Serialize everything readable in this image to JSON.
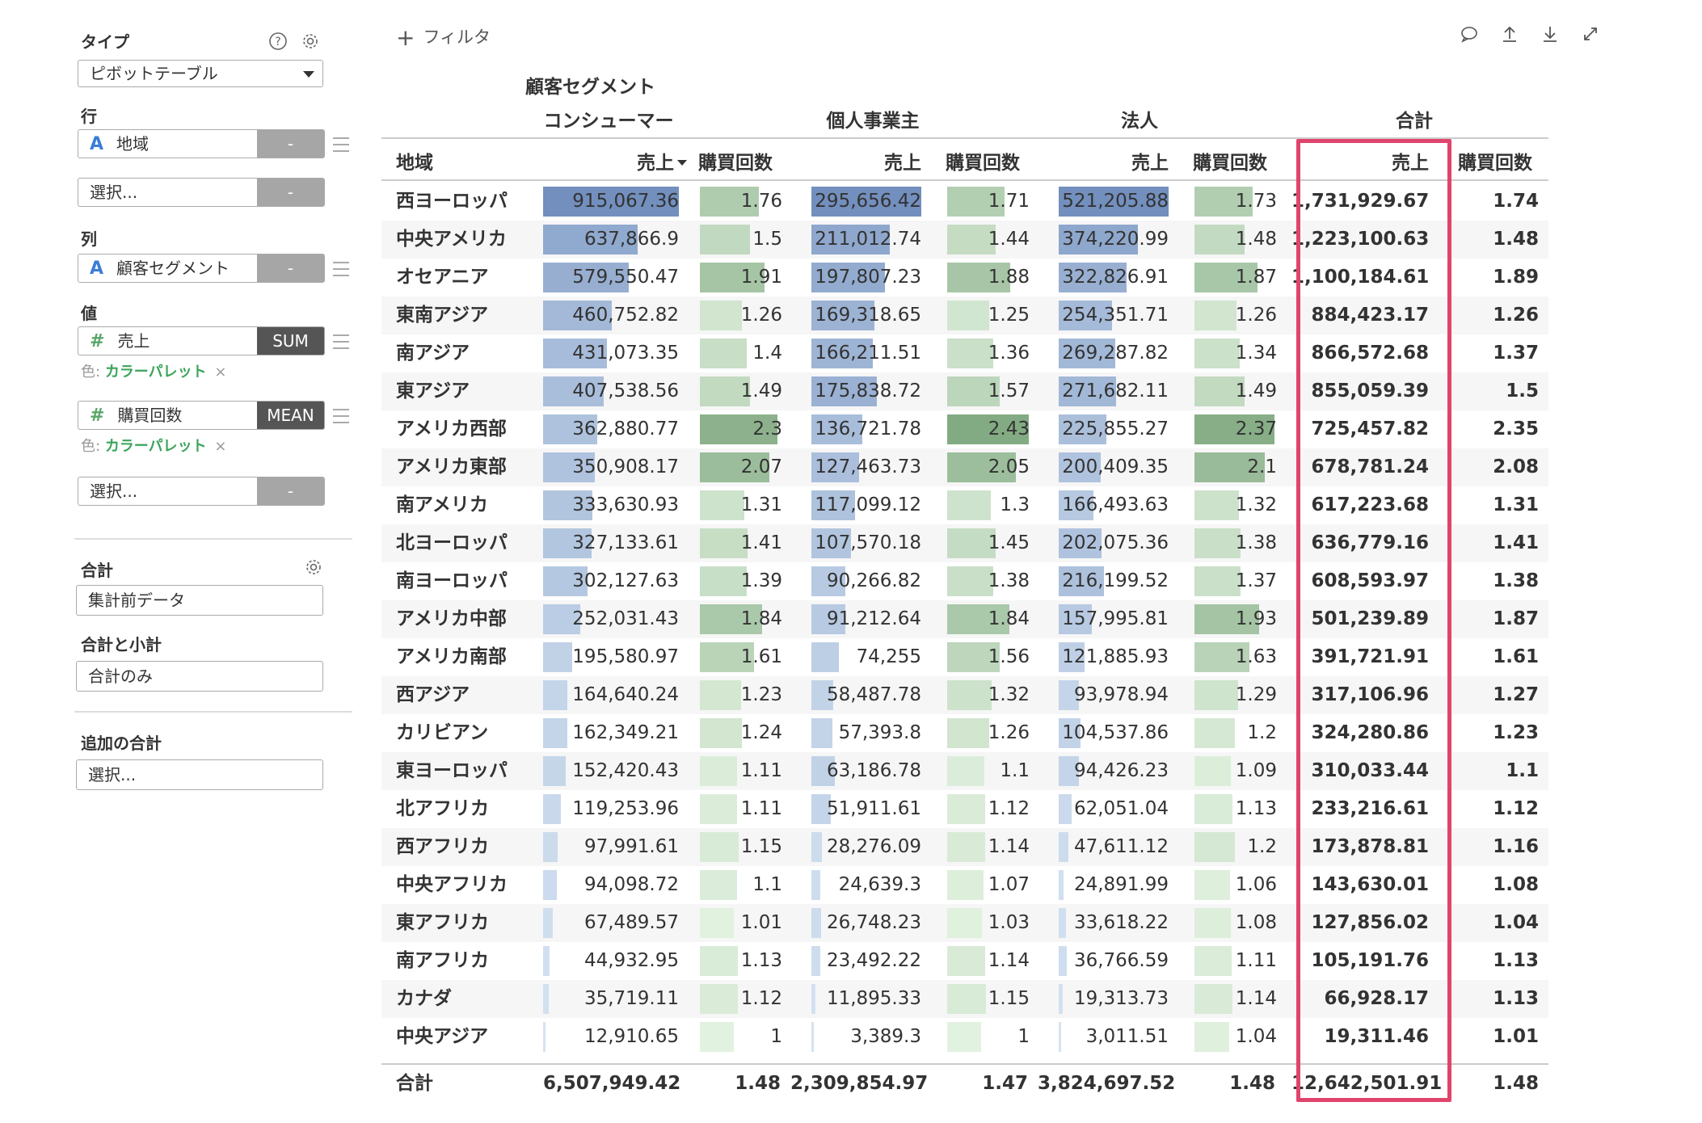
{
  "sidebar": {
    "type_label": "タイプ",
    "help_icon": "help-circle-icon",
    "gear_icon": "gear-icon",
    "type_value": "ピボットテーブル",
    "rows_label": "行",
    "rows_field": {
      "glyph": "A",
      "name": "地域",
      "agg": "-"
    },
    "rows_select": {
      "placeholder": "選択...",
      "agg": "-"
    },
    "cols_label": "列",
    "cols_field": {
      "glyph": "A",
      "name": "顧客セグメント",
      "agg": "-"
    },
    "values_label": "値",
    "value_fields": [
      {
        "glyph": "#",
        "name": "売上",
        "agg": "SUM",
        "color_prefix": "色:",
        "color_palette": "カラーパレット",
        "remove": "×"
      },
      {
        "glyph": "#",
        "name": "購買回数",
        "agg": "MEAN",
        "color_prefix": "色:",
        "color_palette": "カラーパレット",
        "remove": "×"
      }
    ],
    "values_select": {
      "placeholder": "選択...",
      "agg": "-"
    },
    "total_label": "合計",
    "total_value": "集計前データ",
    "subtotal_label": "合計と小計",
    "subtotal_value": "合計のみ",
    "extra_total_label": "追加の合計",
    "extra_total_placeholder": "選択..."
  },
  "toolbar": {
    "filter_label": "フィルタ",
    "icons": [
      "comment-icon",
      "upload-icon",
      "download-icon",
      "expand-icon"
    ]
  },
  "table": {
    "column_group_label": "顧客セグメント",
    "segments": [
      "コンシューマー",
      "個人事業主",
      "法人"
    ],
    "total_header": "合計",
    "row_header": "地域",
    "sales_header": "売上",
    "purchases_header": "購買回数",
    "colors": {
      "sales_bar": "#7a9cc6",
      "purchase_bar": "#8fbf8f",
      "highlight": "#e0446c"
    },
    "rows": [
      {
        "region": "西ヨーロッパ",
        "c_sales": "915,067.36",
        "c_cnt": "1.76",
        "i_sales": "295,656.42",
        "i_cnt": "1.71",
        "k_sales": "521,205.88",
        "k_cnt": "1.73",
        "t_sales": "1,731,929.67",
        "t_cnt": "1.74"
      },
      {
        "region": "中央アメリカ",
        "c_sales": "637,866.9",
        "c_cnt": "1.5",
        "i_sales": "211,012.74",
        "i_cnt": "1.44",
        "k_sales": "374,220.99",
        "k_cnt": "1.48",
        "t_sales": "1,223,100.63",
        "t_cnt": "1.48"
      },
      {
        "region": "オセアニア",
        "c_sales": "579,550.47",
        "c_cnt": "1.91",
        "i_sales": "197,807.23",
        "i_cnt": "1.88",
        "k_sales": "322,826.91",
        "k_cnt": "1.87",
        "t_sales": "1,100,184.61",
        "t_cnt": "1.89"
      },
      {
        "region": "東南アジア",
        "c_sales": "460,752.82",
        "c_cnt": "1.26",
        "i_sales": "169,318.65",
        "i_cnt": "1.25",
        "k_sales": "254,351.71",
        "k_cnt": "1.26",
        "t_sales": "884,423.17",
        "t_cnt": "1.26"
      },
      {
        "region": "南アジア",
        "c_sales": "431,073.35",
        "c_cnt": "1.4",
        "i_sales": "166,211.51",
        "i_cnt": "1.36",
        "k_sales": "269,287.82",
        "k_cnt": "1.34",
        "t_sales": "866,572.68",
        "t_cnt": "1.37"
      },
      {
        "region": "東アジア",
        "c_sales": "407,538.56",
        "c_cnt": "1.49",
        "i_sales": "175,838.72",
        "i_cnt": "1.57",
        "k_sales": "271,682.11",
        "k_cnt": "1.49",
        "t_sales": "855,059.39",
        "t_cnt": "1.5"
      },
      {
        "region": "アメリカ西部",
        "c_sales": "362,880.77",
        "c_cnt": "2.3",
        "i_sales": "136,721.78",
        "i_cnt": "2.43",
        "k_sales": "225,855.27",
        "k_cnt": "2.37",
        "t_sales": "725,457.82",
        "t_cnt": "2.35"
      },
      {
        "region": "アメリカ東部",
        "c_sales": "350,908.17",
        "c_cnt": "2.07",
        "i_sales": "127,463.73",
        "i_cnt": "2.05",
        "k_sales": "200,409.35",
        "k_cnt": "2.1",
        "t_sales": "678,781.24",
        "t_cnt": "2.08"
      },
      {
        "region": "南アメリカ",
        "c_sales": "333,630.93",
        "c_cnt": "1.31",
        "i_sales": "117,099.12",
        "i_cnt": "1.3",
        "k_sales": "166,493.63",
        "k_cnt": "1.32",
        "t_sales": "617,223.68",
        "t_cnt": "1.31"
      },
      {
        "region": "北ヨーロッパ",
        "c_sales": "327,133.61",
        "c_cnt": "1.41",
        "i_sales": "107,570.18",
        "i_cnt": "1.45",
        "k_sales": "202,075.36",
        "k_cnt": "1.38",
        "t_sales": "636,779.16",
        "t_cnt": "1.41"
      },
      {
        "region": "南ヨーロッパ",
        "c_sales": "302,127.63",
        "c_cnt": "1.39",
        "i_sales": "90,266.82",
        "i_cnt": "1.38",
        "k_sales": "216,199.52",
        "k_cnt": "1.37",
        "t_sales": "608,593.97",
        "t_cnt": "1.38"
      },
      {
        "region": "アメリカ中部",
        "c_sales": "252,031.43",
        "c_cnt": "1.84",
        "i_sales": "91,212.64",
        "i_cnt": "1.84",
        "k_sales": "157,995.81",
        "k_cnt": "1.93",
        "t_sales": "501,239.89",
        "t_cnt": "1.87"
      },
      {
        "region": "アメリカ南部",
        "c_sales": "195,580.97",
        "c_cnt": "1.61",
        "i_sales": "74,255",
        "i_cnt": "1.56",
        "k_sales": "121,885.93",
        "k_cnt": "1.63",
        "t_sales": "391,721.91",
        "t_cnt": "1.61"
      },
      {
        "region": "西アジア",
        "c_sales": "164,640.24",
        "c_cnt": "1.23",
        "i_sales": "58,487.78",
        "i_cnt": "1.32",
        "k_sales": "93,978.94",
        "k_cnt": "1.29",
        "t_sales": "317,106.96",
        "t_cnt": "1.27"
      },
      {
        "region": "カリビアン",
        "c_sales": "162,349.21",
        "c_cnt": "1.24",
        "i_sales": "57,393.8",
        "i_cnt": "1.26",
        "k_sales": "104,537.86",
        "k_cnt": "1.2",
        "t_sales": "324,280.86",
        "t_cnt": "1.23"
      },
      {
        "region": "東ヨーロッパ",
        "c_sales": "152,420.43",
        "c_cnt": "1.11",
        "i_sales": "63,186.78",
        "i_cnt": "1.1",
        "k_sales": "94,426.23",
        "k_cnt": "1.09",
        "t_sales": "310,033.44",
        "t_cnt": "1.1"
      },
      {
        "region": "北アフリカ",
        "c_sales": "119,253.96",
        "c_cnt": "1.11",
        "i_sales": "51,911.61",
        "i_cnt": "1.12",
        "k_sales": "62,051.04",
        "k_cnt": "1.13",
        "t_sales": "233,216.61",
        "t_cnt": "1.12"
      },
      {
        "region": "西アフリカ",
        "c_sales": "97,991.61",
        "c_cnt": "1.15",
        "i_sales": "28,276.09",
        "i_cnt": "1.14",
        "k_sales": "47,611.12",
        "k_cnt": "1.2",
        "t_sales": "173,878.81",
        "t_cnt": "1.16"
      },
      {
        "region": "中央アフリカ",
        "c_sales": "94,098.72",
        "c_cnt": "1.1",
        "i_sales": "24,639.3",
        "i_cnt": "1.07",
        "k_sales": "24,891.99",
        "k_cnt": "1.06",
        "t_sales": "143,630.01",
        "t_cnt": "1.08"
      },
      {
        "region": "東アフリカ",
        "c_sales": "67,489.57",
        "c_cnt": "1.01",
        "i_sales": "26,748.23",
        "i_cnt": "1.03",
        "k_sales": "33,618.22",
        "k_cnt": "1.08",
        "t_sales": "127,856.02",
        "t_cnt": "1.04"
      },
      {
        "region": "南アフリカ",
        "c_sales": "44,932.95",
        "c_cnt": "1.13",
        "i_sales": "23,492.22",
        "i_cnt": "1.14",
        "k_sales": "36,766.59",
        "k_cnt": "1.11",
        "t_sales": "105,191.76",
        "t_cnt": "1.13"
      },
      {
        "region": "カナダ",
        "c_sales": "35,719.11",
        "c_cnt": "1.12",
        "i_sales": "11,895.33",
        "i_cnt": "1.15",
        "k_sales": "19,313.73",
        "k_cnt": "1.14",
        "t_sales": "66,928.17",
        "t_cnt": "1.13"
      },
      {
        "region": "中央アジア",
        "c_sales": "12,910.65",
        "c_cnt": "1",
        "i_sales": "3,389.3",
        "i_cnt": "1",
        "k_sales": "3,011.51",
        "k_cnt": "1.04",
        "t_sales": "19,311.46",
        "t_cnt": "1.01"
      }
    ],
    "totals": {
      "label": "合計",
      "c_sales": "6,507,949.42",
      "c_cnt": "1.48",
      "i_sales": "2,309,854.97",
      "i_cnt": "1.47",
      "k_sales": "3,824,697.52",
      "k_cnt": "1.48",
      "t_sales": "12,642,501.91",
      "t_cnt": "1.48"
    }
  }
}
